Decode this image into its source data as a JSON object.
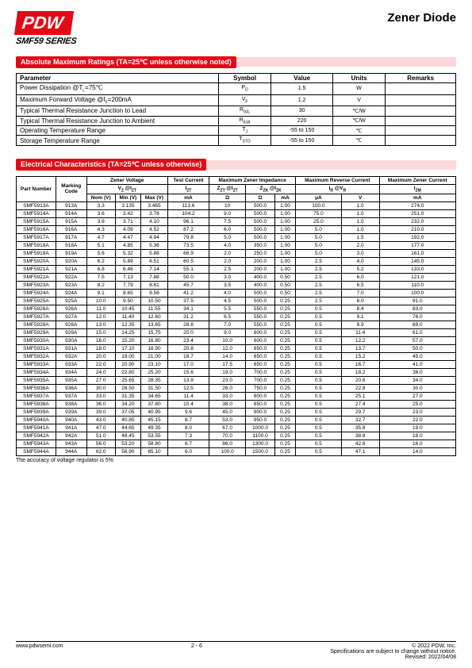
{
  "header": {
    "brand": "PDW",
    "series": "SMF59 SERIES",
    "title": "Zener Diode"
  },
  "section1": {
    "title": "Absolute Maximum Ratings (TA=25℃ unless otherwise noted)",
    "columns": [
      "Parameter",
      "Symbol",
      "Value",
      "Units",
      "Remarks"
    ],
    "rows": [
      {
        "param": "Power Dissipation @Tₗ=75℃",
        "symbol": "P_D",
        "value": "1.5",
        "units": "W",
        "remarks": ""
      },
      {
        "param": "Maximum Forward Voltage @I_F=200mA",
        "symbol": "V_F",
        "value": "1.2",
        "units": "V",
        "remarks": ""
      },
      {
        "param": "Typical Thermal Resistance Junction to Lead",
        "symbol": "R_θJL",
        "value": "30",
        "units": "℃/W",
        "remarks": ""
      },
      {
        "param": "Typical Thermal Resistance Junction to Ambient",
        "symbol": "R_θJA",
        "value": "220",
        "units": "℃/W",
        "remarks": ""
      },
      {
        "param": "Operating Temperature Range",
        "symbol": "T_J",
        "value": "-55 to 150",
        "units": "℃",
        "remarks": ""
      },
      {
        "param": "Storage Temperature Range",
        "symbol": "T_STG",
        "value": "-55 to 150",
        "units": "℃",
        "remarks": ""
      }
    ]
  },
  "section2": {
    "title": "Electrical Characteristics (TA=25℃ unless otherwise)",
    "head1": {
      "part": "Part Number",
      "marking": "Marking Code",
      "zener": "Zener Voltage",
      "test": "Test Current",
      "imp": "Maximum Zener Impedance",
      "rev": "Maximum Reverse Current",
      "izm": "Maximum Zener Current"
    },
    "head2": {
      "vz": "V_Z @I_ZT",
      "izt": "I_ZT",
      "zzt": "Z_ZT @I_ZT",
      "zzk": "Z_ZK @I_ZK",
      "ir": "I_R @V_R",
      "izm": "I_ZM"
    },
    "head3": [
      "Nom (V)",
      "Min (V)",
      "Max (V)",
      "mA",
      "Ω",
      "Ω",
      "mA",
      "μA",
      "V",
      "mA"
    ],
    "rows": [
      [
        "SMF5913A",
        "913A",
        "3.3",
        "3.135",
        "3.465",
        "113.6",
        "10",
        "500.0",
        "1.00",
        "100.0",
        "1.0",
        "274.0"
      ],
      [
        "SMF5914A",
        "914A",
        "3.6",
        "3.42",
        "3.78",
        "104.2",
        "9.0",
        "500.0",
        "1.00",
        "75.0",
        "1.0",
        "251.0"
      ],
      [
        "SMF5915A",
        "915A",
        "3.9",
        "3.71",
        "4.10",
        "96.1",
        "7.5",
        "500.0",
        "1.00",
        "25.0",
        "1.0",
        "232.0"
      ],
      [
        "SMF5916A",
        "916A",
        "4.3",
        "4.09",
        "4.52",
        "87.2",
        "6.0",
        "500.0",
        "1.00",
        "5.0",
        "1.0",
        "210.0"
      ],
      [
        "SMF5917A",
        "917A",
        "4.7",
        "4.47",
        "4.94",
        "79.8",
        "5.0",
        "500.0",
        "1.00",
        "5.0",
        "1.5",
        "192.0"
      ],
      [
        "SMF5918A",
        "918A",
        "5.1",
        "4.85",
        "5.36",
        "73.5",
        "4.0",
        "350.0",
        "1.00",
        "5.0",
        "2.0",
        "177.0"
      ],
      [
        "SMF5919A",
        "919A",
        "5.6",
        "5.32",
        "5.88",
        "66.9",
        "2.0",
        "250.0",
        "1.00",
        "5.0",
        "3.0",
        "161.0"
      ],
      [
        "SMF5920A",
        "920A",
        "6.2",
        "5.89",
        "6.51",
        "60.5",
        "2.0",
        "200.0",
        "1.00",
        "2.5",
        "4.0",
        "145.0"
      ],
      [
        "SMF5921A",
        "921A",
        "6.8",
        "6.46",
        "7.14",
        "55.1",
        "2.5",
        "200.0",
        "1.00",
        "2.5",
        "5.2",
        "133.0"
      ],
      [
        "SMF5922A",
        "922A",
        "7.5",
        "7.13",
        "7.88",
        "50.0",
        "3.0",
        "400.0",
        "0.50",
        "2.5",
        "6.0",
        "121.0"
      ],
      [
        "SMF5923A",
        "923A",
        "8.2",
        "7.79",
        "8.61",
        "45.7",
        "3.5",
        "400.0",
        "0.50",
        "2.5",
        "6.5",
        "110.0"
      ],
      [
        "SMF5924A",
        "924A",
        "9.1",
        "8.65",
        "9.56",
        "41.2",
        "4.0",
        "500.0",
        "0.50",
        "2.5",
        "7.0",
        "100.0"
      ],
      [
        "SMF5925A",
        "925A",
        "10.0",
        "9.50",
        "10.50",
        "37.5",
        "4.5",
        "500.0",
        "0.25",
        "2.5",
        "8.0",
        "91.0"
      ],
      [
        "SMF5926A",
        "926A",
        "11.0",
        "10.45",
        "11.55",
        "34.1",
        "5.5",
        "550.0",
        "0.25",
        "0.5",
        "8.4",
        "83.0"
      ],
      [
        "SMF5927A",
        "927A",
        "12.0",
        "11.40",
        "12.60",
        "31.2",
        "6.5",
        "550.0",
        "0.25",
        "0.5",
        "9.1",
        "76.0"
      ],
      [
        "SMF5928A",
        "928A",
        "13.0",
        "12.35",
        "13.65",
        "28.8",
        "7.0",
        "550.0",
        "0.25",
        "0.5",
        "9.9",
        "69.0"
      ],
      [
        "SMF5929A",
        "929A",
        "15.0",
        "14.25",
        "15.75",
        "25.0",
        "9.0",
        "600.0",
        "0.25",
        "0.5",
        "11.4",
        "61.0"
      ],
      [
        "SMF5930A",
        "930A",
        "16.0",
        "15.20",
        "16.80",
        "23.4",
        "10.0",
        "600.0",
        "0.25",
        "0.5",
        "12.2",
        "57.0"
      ],
      [
        "SMF5931A",
        "931A",
        "18.0",
        "17.10",
        "18.90",
        "20.8",
        "12.0",
        "650.0",
        "0.25",
        "0.5",
        "13.7",
        "50.0"
      ],
      [
        "SMF5932A",
        "932A",
        "20.0",
        "19.00",
        "21.00",
        "18.7",
        "14.0",
        "650.0",
        "0.25",
        "0.5",
        "15.2",
        "45.0"
      ],
      [
        "SMF5933A",
        "933A",
        "22.0",
        "20.90",
        "23.10",
        "17.0",
        "17.5",
        "650.0",
        "0.25",
        "0.5",
        "16.7",
        "41.0"
      ],
      [
        "SMF5934A",
        "934A",
        "24.0",
        "22.80",
        "25.20",
        "15.6",
        "19.0",
        "700.0",
        "0.25",
        "0.5",
        "18.2",
        "38.0"
      ],
      [
        "SMF5935A",
        "935A",
        "27.0",
        "25.65",
        "28.35",
        "13.9",
        "23.0",
        "700.0",
        "0.25",
        "0.5",
        "20.6",
        "34.0"
      ],
      [
        "SMF5936A",
        "936A",
        "30.0",
        "28.50",
        "31.50",
        "12.5",
        "26.0",
        "750.0",
        "0.25",
        "0.5",
        "22.8",
        "30.0"
      ],
      [
        "SMF5937A",
        "937A",
        "33.0",
        "31.35",
        "34.65",
        "11.4",
        "33.0",
        "800.0",
        "0.25",
        "0.5",
        "25.1",
        "27.0"
      ],
      [
        "SMF5938A",
        "938A",
        "36.0",
        "34.20",
        "37.80",
        "10.4",
        "38.0",
        "850.0",
        "0.25",
        "0.5",
        "27.4",
        "25.0"
      ],
      [
        "SMF5939A",
        "939A",
        "39.0",
        "37.05",
        "40.95",
        "9.6",
        "45.0",
        "900.0",
        "0.25",
        "0.5",
        "29.7",
        "23.0"
      ],
      [
        "SMF5940A",
        "940A",
        "43.0",
        "40.85",
        "45.15",
        "8.7",
        "53.0",
        "950.0",
        "0.25",
        "0.5",
        "32.7",
        "22.0"
      ],
      [
        "SMF5941A",
        "941A",
        "47.0",
        "44.65",
        "49.35",
        "8.0",
        "67.0",
        "1000.0",
        "0.25",
        "0.5",
        "35.8",
        "19.0"
      ],
      [
        "SMF5942A",
        "942A",
        "51.0",
        "48.45",
        "53.55",
        "7.3",
        "70.0",
        "1100.0",
        "0.25",
        "0.5",
        "38.8",
        "18.0"
      ],
      [
        "SMF5943A",
        "943A",
        "56.0",
        "53.20",
        "58.80",
        "6.7",
        "86.0",
        "1300.0",
        "0.25",
        "0.5",
        "42.6",
        "16.0"
      ],
      [
        "SMF5944A",
        "944A",
        "62.0",
        "58.90",
        "65.10",
        "6.0",
        "100.0",
        "1500.0",
        "0.25",
        "0.5",
        "47.1",
        "14.0"
      ]
    ],
    "note": "The accuracy of voltage regulator is 5%"
  },
  "footer": {
    "url": "www.pdwsemi.com",
    "page": "2 - 6",
    "copyright": "© 2022 PDW, Inc.",
    "line2": "Specifications are subject to change without notice.",
    "line3": "Revised: 2022/04/08"
  }
}
